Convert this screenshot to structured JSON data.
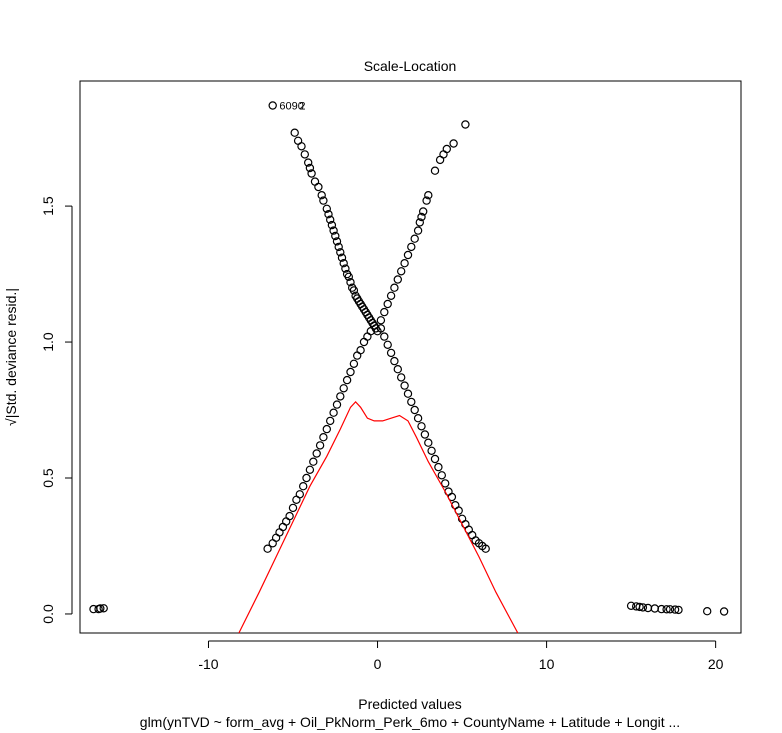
{
  "chart_data": {
    "type": "scatter",
    "title": "Scale-Location",
    "xlabel": "Predicted values",
    "ylabel": "√|Std. deviance resid.|",
    "subtitle": "glm(ynTVD ~ form_avg + Oil_PkNorm_Perk_6mo + CountyName + Latitude + Longit ...",
    "xlim": [
      -17.6,
      21.5
    ],
    "ylim": [
      -0.07,
      1.96
    ],
    "xticks": [
      -10,
      0,
      10,
      20
    ],
    "xtick_labels": [
      "-10",
      "0",
      "10",
      "20"
    ],
    "yticks": [
      0.0,
      0.5,
      1.0,
      1.5
    ],
    "ytick_labels": [
      "0.0",
      "0.5",
      "1.0",
      "1.5"
    ],
    "grid": false,
    "point_label": {
      "text": "6090",
      "x": -6.1,
      "y": 1.87
    },
    "point_label_overlap_text": "2",
    "series": [
      {
        "marker": "open-circle",
        "color": "#000000",
        "points": [
          [
            -16.8,
            0.018
          ],
          [
            -16.5,
            0.018
          ],
          [
            -16.4,
            0.02
          ],
          [
            -16.2,
            0.021
          ],
          [
            -6.2,
            1.87
          ],
          [
            -4.9,
            1.77
          ],
          [
            -4.7,
            1.74
          ],
          [
            -4.5,
            1.72
          ],
          [
            -4.3,
            1.69
          ],
          [
            -4.1,
            1.66
          ],
          [
            -4.0,
            1.64
          ],
          [
            -3.9,
            1.62
          ],
          [
            -3.7,
            1.59
          ],
          [
            -3.5,
            1.57
          ],
          [
            -3.3,
            1.54
          ],
          [
            -3.2,
            1.52
          ],
          [
            -3.0,
            1.49
          ],
          [
            -2.9,
            1.47
          ],
          [
            -2.8,
            1.45
          ],
          [
            -2.7,
            1.43
          ],
          [
            -2.6,
            1.41
          ],
          [
            -2.5,
            1.39
          ],
          [
            -2.4,
            1.37
          ],
          [
            -2.3,
            1.35
          ],
          [
            -2.2,
            1.33
          ],
          [
            -2.1,
            1.31
          ],
          [
            -2.0,
            1.29
          ],
          [
            -1.9,
            1.27
          ],
          [
            -1.8,
            1.25
          ],
          [
            -1.7,
            1.24
          ],
          [
            -1.6,
            1.22
          ],
          [
            -1.5,
            1.2
          ],
          [
            -1.4,
            1.19
          ],
          [
            -1.3,
            1.17
          ],
          [
            -1.2,
            1.16
          ],
          [
            -1.1,
            1.15
          ],
          [
            -1.0,
            1.14
          ],
          [
            -0.9,
            1.13
          ],
          [
            -0.8,
            1.12
          ],
          [
            -0.7,
            1.11
          ],
          [
            -0.6,
            1.1
          ],
          [
            -0.5,
            1.09
          ],
          [
            -0.4,
            1.08
          ],
          [
            -0.3,
            1.07
          ],
          [
            -0.2,
            1.06
          ],
          [
            -0.1,
            1.05
          ],
          [
            0.0,
            1.04
          ],
          [
            -6.5,
            0.24
          ],
          [
            -6.2,
            0.26
          ],
          [
            -6.0,
            0.28
          ],
          [
            -5.8,
            0.3
          ],
          [
            -5.6,
            0.32
          ],
          [
            -5.4,
            0.34
          ],
          [
            -5.2,
            0.36
          ],
          [
            -5.0,
            0.39
          ],
          [
            -4.8,
            0.42
          ],
          [
            -4.6,
            0.44
          ],
          [
            -4.4,
            0.47
          ],
          [
            -4.2,
            0.5
          ],
          [
            -4.0,
            0.53
          ],
          [
            -3.8,
            0.56
          ],
          [
            -3.6,
            0.59
          ],
          [
            -3.4,
            0.62
          ],
          [
            -3.2,
            0.65
          ],
          [
            -3.0,
            0.68
          ],
          [
            -2.8,
            0.71
          ],
          [
            -2.6,
            0.74
          ],
          [
            -2.4,
            0.77
          ],
          [
            -2.2,
            0.8
          ],
          [
            -2.0,
            0.83
          ],
          [
            -1.8,
            0.86
          ],
          [
            -1.6,
            0.89
          ],
          [
            -1.4,
            0.92
          ],
          [
            -1.2,
            0.95
          ],
          [
            -1.0,
            0.97
          ],
          [
            -0.8,
            1.0
          ],
          [
            -0.6,
            1.02
          ],
          [
            -0.4,
            1.04
          ],
          [
            -0.2,
            1.06
          ],
          [
            0.2,
            1.08
          ],
          [
            0.4,
            1.11
          ],
          [
            0.6,
            1.14
          ],
          [
            0.8,
            1.17
          ],
          [
            1.0,
            1.2
          ],
          [
            1.2,
            1.23
          ],
          [
            1.4,
            1.26
          ],
          [
            1.6,
            1.29
          ],
          [
            1.8,
            1.32
          ],
          [
            2.0,
            1.35
          ],
          [
            2.2,
            1.38
          ],
          [
            2.4,
            1.41
          ],
          [
            2.5,
            1.44
          ],
          [
            2.6,
            1.46
          ],
          [
            2.7,
            1.48
          ],
          [
            2.9,
            1.52
          ],
          [
            3.0,
            1.54
          ],
          [
            3.4,
            1.63
          ],
          [
            3.7,
            1.67
          ],
          [
            3.9,
            1.69
          ],
          [
            4.1,
            1.71
          ],
          [
            4.5,
            1.73
          ],
          [
            5.2,
            1.8
          ],
          [
            0.2,
            1.05
          ],
          [
            0.4,
            1.02
          ],
          [
            0.6,
            0.99
          ],
          [
            0.8,
            0.96
          ],
          [
            1.0,
            0.93
          ],
          [
            1.2,
            0.9
          ],
          [
            1.4,
            0.87
          ],
          [
            1.6,
            0.84
          ],
          [
            1.8,
            0.81
          ],
          [
            2.0,
            0.78
          ],
          [
            2.2,
            0.75
          ],
          [
            2.4,
            0.72
          ],
          [
            2.6,
            0.69
          ],
          [
            2.8,
            0.66
          ],
          [
            3.0,
            0.63
          ],
          [
            3.2,
            0.6
          ],
          [
            3.4,
            0.57
          ],
          [
            3.6,
            0.54
          ],
          [
            3.8,
            0.51
          ],
          [
            4.0,
            0.48
          ],
          [
            4.2,
            0.45
          ],
          [
            4.4,
            0.43
          ],
          [
            4.6,
            0.4
          ],
          [
            4.8,
            0.38
          ],
          [
            5.0,
            0.35
          ],
          [
            5.2,
            0.33
          ],
          [
            5.4,
            0.31
          ],
          [
            5.6,
            0.29
          ],
          [
            5.8,
            0.27
          ],
          [
            6.0,
            0.26
          ],
          [
            6.2,
            0.25
          ],
          [
            6.4,
            0.24
          ],
          [
            15.0,
            0.03
          ],
          [
            15.3,
            0.028
          ],
          [
            15.5,
            0.026
          ],
          [
            15.7,
            0.024
          ],
          [
            16.0,
            0.022
          ],
          [
            16.4,
            0.02
          ],
          [
            16.8,
            0.018
          ],
          [
            17.1,
            0.017
          ],
          [
            17.3,
            0.017
          ],
          [
            17.6,
            0.016
          ],
          [
            17.8,
            0.015
          ],
          [
            19.5,
            0.01
          ],
          [
            20.5,
            0.009
          ]
        ]
      },
      {
        "marker": "line",
        "color": "#ff0000",
        "points": [
          [
            -8.2,
            -0.07
          ],
          [
            -7.0,
            0.08
          ],
          [
            -6.0,
            0.21
          ],
          [
            -5.0,
            0.34
          ],
          [
            -4.0,
            0.47
          ],
          [
            -3.0,
            0.58
          ],
          [
            -2.2,
            0.68
          ],
          [
            -1.6,
            0.76
          ],
          [
            -1.3,
            0.78
          ],
          [
            -1.0,
            0.76
          ],
          [
            -0.6,
            0.72
          ],
          [
            -0.2,
            0.71
          ],
          [
            0.3,
            0.71
          ],
          [
            0.8,
            0.72
          ],
          [
            1.3,
            0.73
          ],
          [
            1.8,
            0.71
          ],
          [
            2.3,
            0.65
          ],
          [
            3.0,
            0.56
          ],
          [
            4.0,
            0.45
          ],
          [
            5.0,
            0.33
          ],
          [
            6.0,
            0.21
          ],
          [
            7.0,
            0.08
          ],
          [
            8.3,
            -0.07
          ]
        ]
      }
    ]
  }
}
